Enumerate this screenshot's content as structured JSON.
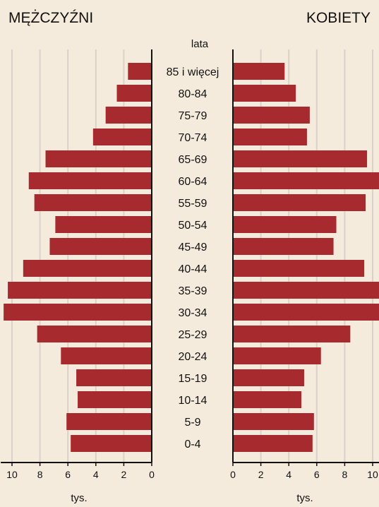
{
  "chart_data": {
    "type": "bar",
    "title_left": "MĘŻCZYŹNI",
    "title_right": "KOBIETY",
    "age_axis_label": "lata",
    "unit_label": "tys.",
    "categories": [
      "85 i więcej",
      "80-84",
      "75-79",
      "70-74",
      "65-69",
      "60-64",
      "55-59",
      "50-54",
      "45-49",
      "40-44",
      "35-39",
      "30-34",
      "25-29",
      "20-24",
      "15-19",
      "10-14",
      "5-9",
      "0-4"
    ],
    "series": [
      {
        "name": "MĘŻCZYŹNI",
        "values": [
          1.7,
          2.5,
          3.3,
          4.2,
          7.6,
          8.8,
          8.4,
          6.9,
          7.3,
          9.2,
          10.3,
          10.6,
          8.2,
          6.5,
          5.4,
          5.3,
          6.1,
          5.8
        ]
      },
      {
        "name": "KOBIETY",
        "values": [
          3.7,
          4.5,
          5.5,
          5.3,
          9.6,
          10.6,
          9.5,
          7.4,
          7.2,
          9.4,
          10.6,
          10.6,
          8.4,
          6.3,
          5.1,
          4.9,
          5.8,
          5.7
        ]
      }
    ],
    "x_ticks_left": [
      "10",
      "8",
      "6",
      "4",
      "2",
      "0"
    ],
    "x_ticks_right": [
      "0",
      "2",
      "4",
      "6",
      "8",
      "10"
    ],
    "xlim": [
      0,
      10.6
    ],
    "grid": true,
    "colors": {
      "bar": "#a72b2e",
      "background": "#f5ebdc",
      "grid": "#d8d2c8",
      "axis": "#111111"
    }
  }
}
